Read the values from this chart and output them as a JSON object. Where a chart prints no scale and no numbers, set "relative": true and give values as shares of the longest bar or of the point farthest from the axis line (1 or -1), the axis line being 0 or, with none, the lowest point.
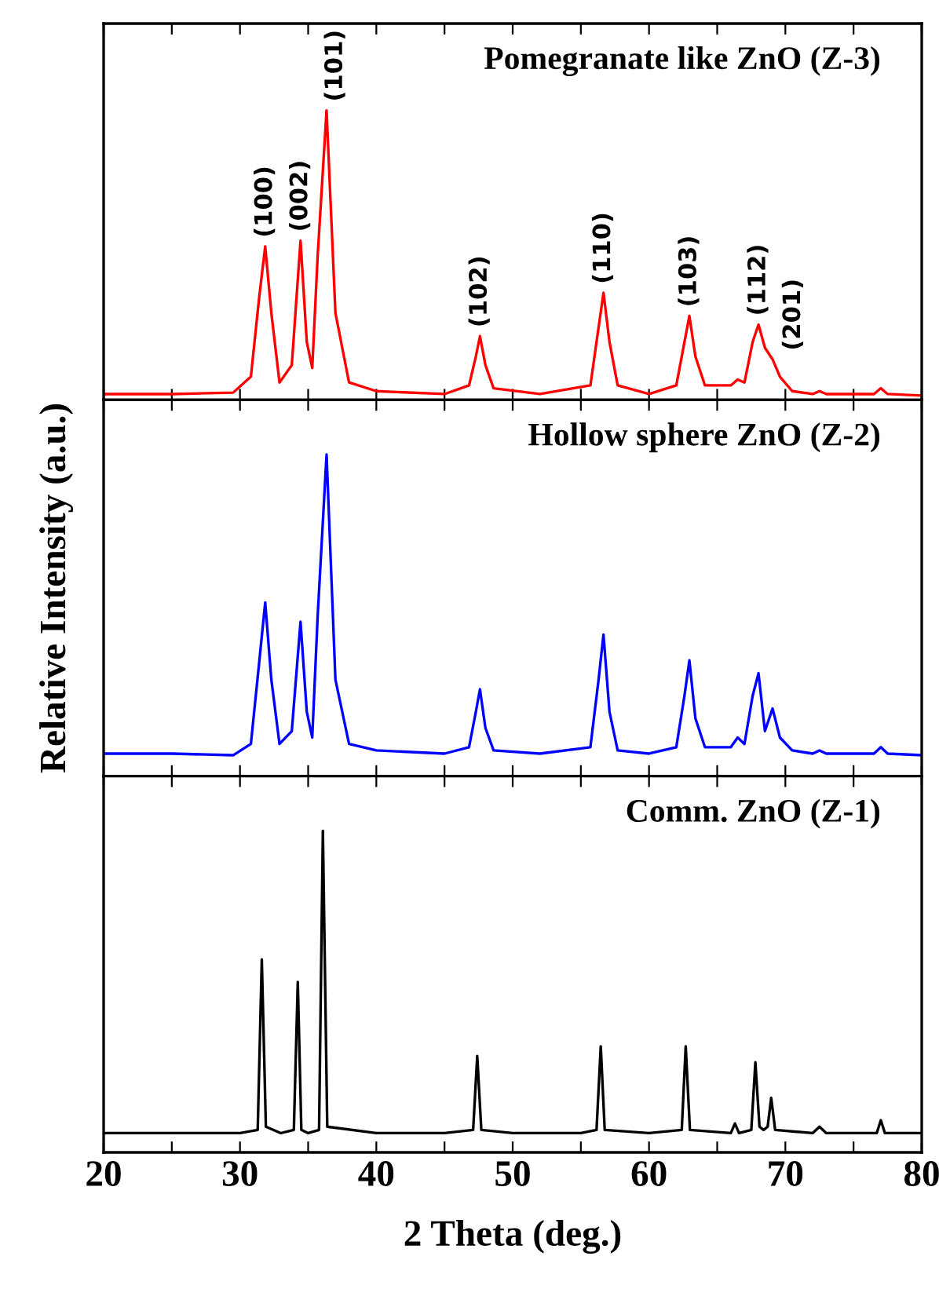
{
  "chart_data": [
    {
      "type": "line",
      "relative": true,
      "xlim": [
        20,
        80
      ],
      "xticks": [
        20,
        {
          "value": 25,
          "label": null
        },
        30,
        {
          "value": 35,
          "label": null
        },
        40,
        {
          "value": 45,
          "label": null
        },
        50,
        {
          "value": 55,
          "label": null
        },
        60,
        {
          "value": 65,
          "label": null
        },
        70,
        {
          "value": 75,
          "label": null
        },
        80
      ],
      "tick_labels": false,
      "x": [
        20,
        25,
        29.5,
        30.8,
        31.4,
        31.85,
        32.3,
        32.9,
        33.8,
        34.44,
        34.9,
        35.3,
        35.7,
        36.35,
        37.0,
        38,
        40,
        45,
        46.8,
        47.3,
        47.6,
        48.0,
        48.6,
        52,
        55.7,
        56.3,
        56.66,
        57.1,
        57.7,
        60,
        62.0,
        62.6,
        62.96,
        63.4,
        64.1,
        66.0,
        66.5,
        67.0,
        67.6,
        68.03,
        68.5,
        69.06,
        69.6,
        70.5,
        72,
        72.5,
        73,
        76.5,
        77,
        77.5,
        80
      ],
      "series": [
        {
          "color": "#ff0000",
          "values": [
            0.02,
            0.02,
            0.025,
            0.08,
            0.35,
            0.53,
            0.3,
            0.06,
            0.12,
            0.55,
            0.2,
            0.11,
            0.5,
            1,
            0.3,
            0.06,
            0.03,
            0.02,
            0.05,
            0.15,
            0.22,
            0.12,
            0.04,
            0.02,
            0.05,
            0.25,
            0.37,
            0.2,
            0.05,
            0.02,
            0.05,
            0.2,
            0.29,
            0.15,
            0.05,
            0.05,
            0.07,
            0.06,
            0.2,
            0.26,
            0.18,
            0.14,
            0.08,
            0.03,
            0.02,
            0.03,
            0.02,
            0.02,
            0.04,
            0.02,
            0.015
          ]
        }
      ],
      "annotations": [
        "Pomegranate like ZnO (Z-3)",
        {
          "text": "(100)",
          "x": 31.85,
          "y": 0.53
        },
        {
          "text": "(002)",
          "x": 34.44,
          "y": 0.55
        },
        {
          "text": "(101)",
          "x": 36.35,
          "y": 1
        },
        {
          "text": "(102)",
          "x": 47.6,
          "y": 0.22
        },
        {
          "text": "(110)",
          "x": 56.66,
          "y": 0.37
        },
        {
          "text": "(103)",
          "x": 62.96,
          "y": 0.29
        },
        {
          "text": "(112)",
          "x": 68.03,
          "y": 0.26
        },
        {
          "text": "(201)",
          "x": 69.06,
          "y": 0.14
        }
      ]
    },
    {
      "type": "line",
      "relative": true,
      "xlim": [
        20,
        80
      ],
      "xticks": [
        20,
        {
          "value": 25,
          "label": null
        },
        30,
        {
          "value": 35,
          "label": null
        },
        40,
        {
          "value": 45,
          "label": null
        },
        50,
        {
          "value": 55,
          "label": null
        },
        60,
        {
          "value": 65,
          "label": null
        },
        70,
        {
          "value": 75,
          "label": null
        },
        80
      ],
      "tick_labels": false,
      "ylabel": "Relative Intensity (a.u.)",
      "x": [
        20,
        25,
        29.5,
        30.8,
        31.4,
        31.85,
        32.3,
        32.9,
        33.8,
        34.44,
        34.9,
        35.3,
        35.7,
        36.35,
        37.0,
        38,
        40,
        45,
        46.8,
        47.3,
        47.6,
        48.0,
        48.6,
        52,
        55.7,
        56.3,
        56.66,
        57.1,
        57.7,
        60,
        62.0,
        62.6,
        62.96,
        63.4,
        64.1,
        66.0,
        66.5,
        67.0,
        67.6,
        68.03,
        68.5,
        69.06,
        69.6,
        70.5,
        72,
        72.5,
        73,
        76.5,
        77,
        77.5,
        80
      ],
      "series": [
        {
          "color": "#0000ff",
          "values": [
            0.07,
            0.07,
            0.065,
            0.1,
            0.35,
            0.54,
            0.3,
            0.1,
            0.14,
            0.48,
            0.2,
            0.12,
            0.5,
            1,
            0.3,
            0.1,
            0.08,
            0.07,
            0.09,
            0.2,
            0.27,
            0.15,
            0.08,
            0.07,
            0.09,
            0.3,
            0.44,
            0.2,
            0.08,
            0.07,
            0.09,
            0.25,
            0.36,
            0.18,
            0.09,
            0.09,
            0.12,
            0.1,
            0.25,
            0.32,
            0.14,
            0.21,
            0.12,
            0.08,
            0.07,
            0.08,
            0.07,
            0.07,
            0.09,
            0.07,
            0.065
          ]
        }
      ],
      "annotations": [
        "Hollow sphere ZnO (Z-2)"
      ]
    },
    {
      "type": "line",
      "relative": true,
      "xlim": [
        20,
        80
      ],
      "xticks": [
        20,
        {
          "value": 25,
          "label": null
        },
        30,
        {
          "value": 35,
          "label": null
        },
        40,
        {
          "value": 45,
          "label": null
        },
        50,
        {
          "value": 55,
          "label": null
        },
        60,
        {
          "value": 65,
          "label": null
        },
        70,
        {
          "value": 75,
          "label": null
        },
        80
      ],
      "tick_labels": "x",
      "xlabel": "2 Theta (deg.)",
      "x": [
        20,
        25,
        30,
        31.3,
        31.6,
        31.9,
        33,
        33.95,
        34.24,
        34.5,
        35,
        35.8,
        36.08,
        36.4,
        40,
        45,
        47.1,
        47.4,
        47.7,
        50,
        55,
        56.15,
        56.46,
        56.75,
        60,
        62.4,
        62.69,
        63.0,
        66,
        66.3,
        66.6,
        67.5,
        67.8,
        68.1,
        68.4,
        68.7,
        68.96,
        69.25,
        72,
        72.5,
        73,
        76.7,
        77,
        77.3,
        80
      ],
      "series": [
        {
          "color": "#000000",
          "values": [
            0.06,
            0.06,
            0.06,
            0.07,
            0.6,
            0.08,
            0.06,
            0.07,
            0.53,
            0.07,
            0.06,
            0.07,
            1,
            0.08,
            0.06,
            0.06,
            0.07,
            0.3,
            0.07,
            0.06,
            0.06,
            0.07,
            0.33,
            0.07,
            0.06,
            0.07,
            0.33,
            0.07,
            0.06,
            0.09,
            0.06,
            0.07,
            0.28,
            0.08,
            0.07,
            0.08,
            0.17,
            0.07,
            0.06,
            0.08,
            0.06,
            0.06,
            0.1,
            0.06,
            0.06
          ]
        }
      ],
      "annotations": [
        "Comm. ZnO (Z-1)"
      ]
    }
  ]
}
